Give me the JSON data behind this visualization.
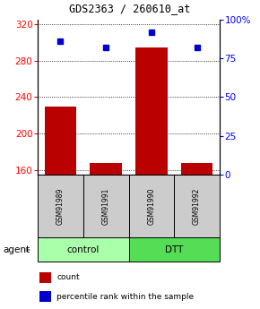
{
  "title": "GDS2363 / 260610_at",
  "samples": [
    "GSM91989",
    "GSM91991",
    "GSM91990",
    "GSM91992"
  ],
  "bar_values": [
    230,
    168,
    295,
    168
  ],
  "percentile_values": [
    86,
    82,
    92,
    82
  ],
  "bar_color": "#bb0000",
  "dot_color": "#0000cc",
  "ylim_left": [
    155,
    325
  ],
  "ylim_right": [
    0,
    100
  ],
  "left_ticks": [
    160,
    200,
    240,
    280,
    320
  ],
  "right_ticks": [
    0,
    25,
    50,
    75,
    100
  ],
  "right_tick_labels": [
    "0",
    "25",
    "50",
    "75",
    "100%"
  ],
  "groups": [
    {
      "label": "control",
      "color": "#aaffaa",
      "indices": [
        0,
        1
      ]
    },
    {
      "label": "DTT",
      "color": "#55dd55",
      "indices": [
        2,
        3
      ]
    }
  ],
  "agent_label": "agent",
  "legend_items": [
    {
      "color": "#bb0000",
      "label": "count"
    },
    {
      "color": "#0000cc",
      "label": "percentile rank within the sample"
    }
  ],
  "background_color": "#ffffff",
  "plot_bg": "#ffffff",
  "bar_width": 0.7,
  "sample_box_color": "#cccccc",
  "title_fontsize": 8.5
}
